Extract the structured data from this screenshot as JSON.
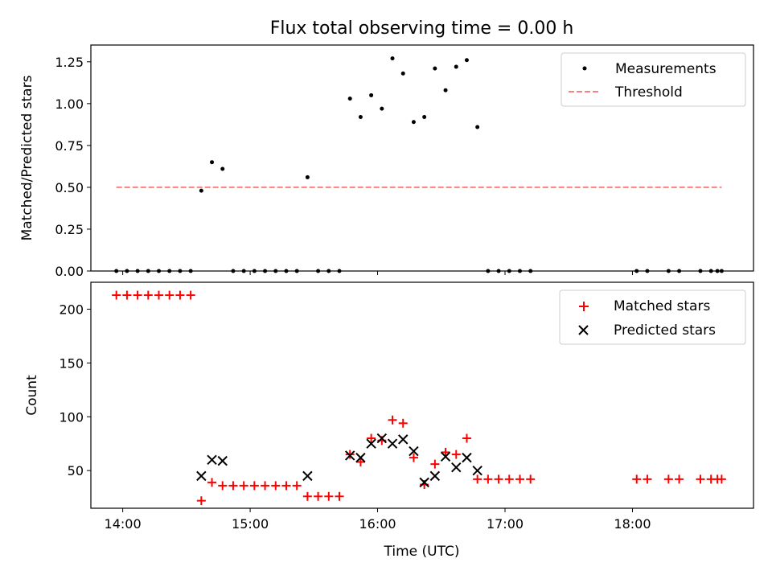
{
  "chart_data": [
    {
      "type": "scatter",
      "title": "Flux total observing time = 0.00 h",
      "xlabel": "",
      "ylabel": "Matched/Predicted stars",
      "ylim": [
        0,
        1.35
      ],
      "yticks": [
        "0.00",
        "0.25",
        "0.50",
        "0.75",
        "1.00",
        "1.25"
      ],
      "legend": {
        "placement": "top-right",
        "entries": [
          "Measurements",
          "Threshold"
        ]
      },
      "threshold": {
        "name": "Threshold",
        "value": 0.5,
        "x_start": "13:57",
        "x_end": "18:42",
        "color": "#ff7f7f"
      },
      "series": [
        {
          "name": "Measurements",
          "color": "#000000",
          "x": [
            "13:57",
            "14:02",
            "14:07",
            "14:12",
            "14:17",
            "14:22",
            "14:27",
            "14:32",
            "14:37",
            "14:42",
            "14:47",
            "14:52",
            "14:57",
            "15:02",
            "15:07",
            "15:12",
            "15:17",
            "15:22",
            "15:27",
            "15:32",
            "15:37",
            "15:42",
            "15:47",
            "15:52",
            "15:57",
            "16:02",
            "16:07",
            "16:12",
            "16:17",
            "16:22",
            "16:27",
            "16:32",
            "16:37",
            "16:42",
            "16:47",
            "16:52",
            "16:57",
            "17:02",
            "17:07",
            "17:12",
            "18:02",
            "18:07",
            "18:17",
            "18:22",
            "18:32",
            "18:37",
            "18:40",
            "18:42"
          ],
          "y": [
            0,
            0,
            0,
            0,
            0,
            0,
            0,
            0,
            0.48,
            0.65,
            0.61,
            0,
            0,
            0,
            0,
            0,
            0,
            0,
            0.56,
            0,
            0,
            0,
            1.03,
            0.92,
            1.05,
            0.97,
            1.27,
            1.18,
            0.89,
            0.92,
            1.21,
            1.08,
            1.22,
            1.26,
            0.86,
            0,
            0,
            0,
            0,
            0,
            0,
            0,
            0,
            0,
            0,
            0,
            0,
            0
          ]
        }
      ]
    },
    {
      "type": "scatter",
      "title": "",
      "xlabel": "Time (UTC)",
      "ylabel": "Count",
      "ylim": [
        15,
        225
      ],
      "xlim": [
        "13:45",
        "18:57"
      ],
      "xticks": [
        "14:00",
        "15:00",
        "16:00",
        "17:00",
        "18:00"
      ],
      "yticks": [
        "50",
        "100",
        "150",
        "200"
      ],
      "legend": {
        "placement": "top-right",
        "entries": [
          "Matched stars",
          "Predicted stars"
        ]
      },
      "series": [
        {
          "name": "Matched stars",
          "marker": "+",
          "color": "#ff0000",
          "x": [
            "13:57",
            "14:02",
            "14:07",
            "14:12",
            "14:17",
            "14:22",
            "14:27",
            "14:32",
            "14:37",
            "14:42",
            "14:47",
            "14:52",
            "14:57",
            "15:02",
            "15:07",
            "15:12",
            "15:17",
            "15:22",
            "15:27",
            "15:32",
            "15:37",
            "15:42",
            "15:47",
            "15:52",
            "15:57",
            "16:02",
            "16:07",
            "16:12",
            "16:17",
            "16:22",
            "16:27",
            "16:32",
            "16:37",
            "16:42",
            "16:47",
            "16:52",
            "16:57",
            "17:02",
            "17:07",
            "17:12",
            "18:02",
            "18:07",
            "18:17",
            "18:22",
            "18:32",
            "18:37",
            "18:40",
            "18:42"
          ],
          "y": [
            213,
            213,
            213,
            213,
            213,
            213,
            213,
            213,
            22,
            39,
            36,
            36,
            36,
            36,
            36,
            36,
            36,
            36,
            26,
            26,
            26,
            26,
            65,
            58,
            80,
            78,
            97,
            94,
            62,
            37,
            56,
            67,
            65,
            80,
            42,
            42,
            42,
            42,
            42,
            42,
            42,
            42,
            42,
            42,
            42,
            42,
            42,
            42
          ]
        },
        {
          "name": "Predicted stars",
          "marker": "x",
          "color": "#000000",
          "x": [
            "14:37",
            "14:42",
            "14:47",
            "15:27",
            "15:47",
            "15:52",
            "15:57",
            "16:02",
            "16:07",
            "16:12",
            "16:17",
            "16:22",
            "16:27",
            "16:32",
            "16:37",
            "16:42",
            "16:47"
          ],
          "y": [
            45,
            60,
            59,
            45,
            64,
            62,
            75,
            80,
            75,
            79,
            68,
            39,
            45,
            63,
            53,
            62,
            50
          ]
        }
      ]
    }
  ]
}
